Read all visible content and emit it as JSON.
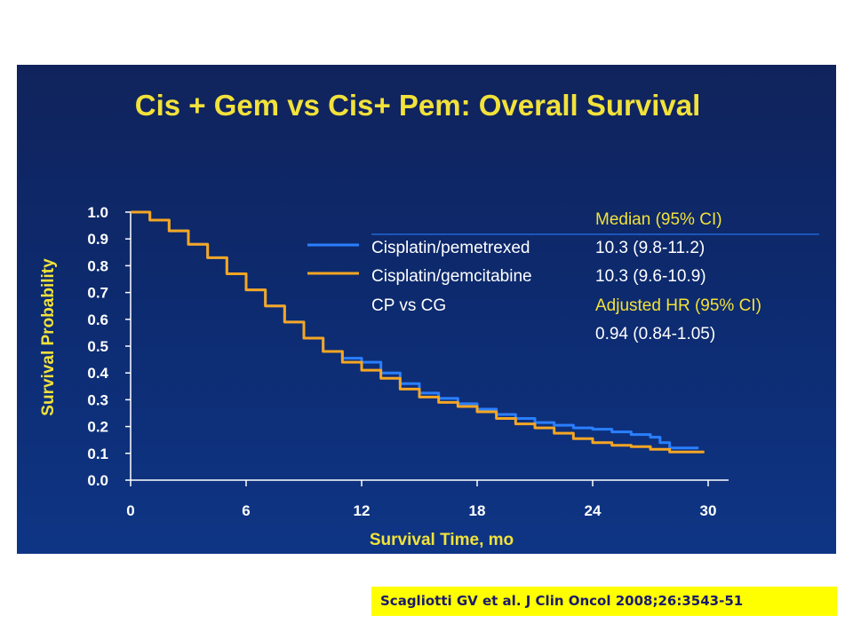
{
  "citation": "Scagliotti GV et al. J Clin Oncol 2008;26:3543-51",
  "colors": {
    "background": "#0d2a6e",
    "accent_yellow": "#f2e23a",
    "pemetrexed": "#2a7fff",
    "gemcitabine": "#f5a623"
  },
  "legend": {
    "stats_header": "Median (95% CI)",
    "comparison_label": "CP vs CG",
    "hr_header": "Adjusted HR (95% CI)",
    "hr_value": "0.94 (0.84-1.05)",
    "rows": [
      {
        "series": "Cisplatin/pemetrexed",
        "median": "10.3 (9.8-11.2)"
      },
      {
        "series": "Cisplatin/gemcitabine",
        "median": "10.3 (9.6-10.9)"
      }
    ]
  },
  "chart_data": {
    "type": "line",
    "title": "Cis + Gem vs Cis+ Pem: Overall Survival",
    "xlabel": "Survival Time, mo",
    "ylabel": "Survival Probability",
    "xlim": [
      0,
      30
    ],
    "ylim": [
      0,
      1.0
    ],
    "x_ticks": [
      0,
      6,
      12,
      18,
      24,
      30
    ],
    "y_ticks": [
      0.0,
      0.1,
      0.2,
      0.3,
      0.4,
      0.5,
      0.6,
      0.7,
      0.8,
      0.9,
      1.0
    ],
    "grid": false,
    "legend_position": "top-right",
    "series": [
      {
        "name": "Cisplatin/pemetrexed",
        "x": [
          0,
          1,
          2,
          3,
          4,
          5,
          6,
          7,
          8,
          9,
          10,
          11,
          12,
          13,
          14,
          15,
          16,
          17,
          18,
          19,
          20,
          21,
          22,
          23,
          24,
          25,
          26,
          27,
          27.5,
          28,
          29,
          29.5
        ],
        "y": [
          1.0,
          0.97,
          0.93,
          0.88,
          0.83,
          0.77,
          0.71,
          0.65,
          0.59,
          0.53,
          0.48,
          0.455,
          0.44,
          0.4,
          0.36,
          0.325,
          0.305,
          0.285,
          0.265,
          0.245,
          0.23,
          0.215,
          0.205,
          0.195,
          0.19,
          0.18,
          0.17,
          0.16,
          0.14,
          0.12,
          0.12,
          0.12
        ]
      },
      {
        "name": "Cisplatin/gemcitabine",
        "x": [
          0,
          1,
          2,
          3,
          4,
          5,
          6,
          7,
          8,
          9,
          10,
          11,
          12,
          13,
          14,
          15,
          16,
          17,
          18,
          19,
          20,
          21,
          22,
          23,
          24,
          25,
          26,
          27,
          28,
          29,
          29.8
        ],
        "y": [
          1.0,
          0.97,
          0.93,
          0.88,
          0.83,
          0.77,
          0.71,
          0.65,
          0.59,
          0.53,
          0.48,
          0.44,
          0.41,
          0.38,
          0.34,
          0.31,
          0.29,
          0.275,
          0.255,
          0.23,
          0.21,
          0.195,
          0.175,
          0.155,
          0.14,
          0.13,
          0.125,
          0.115,
          0.105,
          0.105,
          0.105
        ]
      }
    ]
  }
}
